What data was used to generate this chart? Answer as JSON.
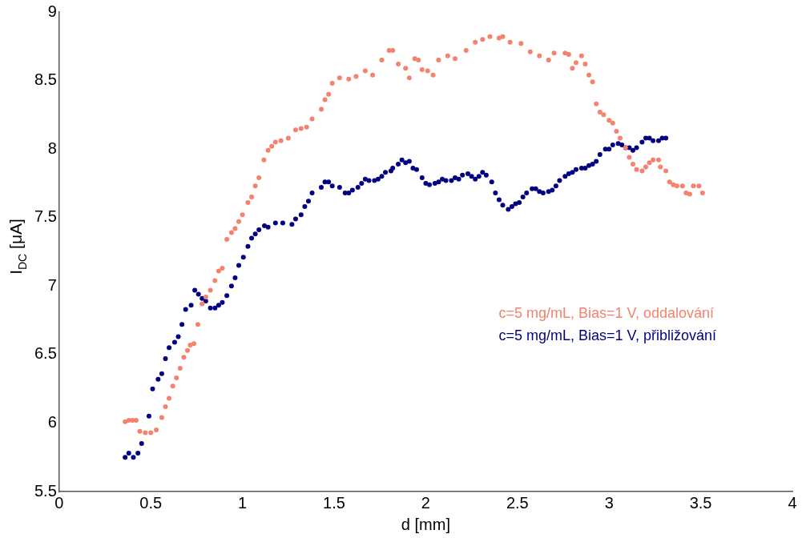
{
  "chart_data": {
    "type": "scatter",
    "xlabel": "d [mm]",
    "ylabel": "I$_{DC}$ [μA]",
    "xlim": [
      0,
      4
    ],
    "xticks": [
      0,
      0.5,
      1,
      1.5,
      2,
      2.5,
      3,
      3.5,
      4
    ],
    "ylim": [
      5.5,
      9
    ],
    "yticks": [
      5.5,
      6,
      6.5,
      7,
      7.5,
      8,
      8.5,
      9
    ],
    "grid": false,
    "legend": "right",
    "marker": "circle",
    "series": [
      {
        "name": "c=5 mg/mL, Bias=1 V, oddalování",
        "color": "#f4826e",
        "x": [
          0.36,
          0.38,
          0.4,
          0.42,
          0.44,
          0.47,
          0.5,
          0.53,
          0.56,
          0.58,
          0.6,
          0.62,
          0.64,
          0.66,
          0.68,
          0.7,
          0.715,
          0.735,
          0.757,
          0.78,
          0.8,
          0.825,
          0.85,
          0.87,
          0.89,
          0.915,
          0.94,
          0.96,
          0.98,
          1.0,
          1.03,
          1.05,
          1.07,
          1.09,
          1.117,
          1.14,
          1.16,
          1.18,
          1.21,
          1.25,
          1.29,
          1.32,
          1.35,
          1.38,
          1.43,
          1.45,
          1.47,
          1.49,
          1.53,
          1.58,
          1.62,
          1.67,
          1.71,
          1.76,
          1.8,
          1.82,
          1.85,
          1.89,
          1.91,
          1.94,
          1.96,
          1.98,
          2.01,
          2.04,
          2.07,
          2.12,
          2.16,
          2.22,
          2.27,
          2.31,
          2.35,
          2.4,
          2.42,
          2.46,
          2.52,
          2.57,
          2.62,
          2.67,
          2.7,
          2.76,
          2.78,
          2.8,
          2.82,
          2.85,
          2.87,
          2.89,
          2.91,
          2.93,
          2.95,
          2.97,
          3.0,
          3.02,
          3.04,
          3.06,
          3.09,
          3.11,
          3.13,
          3.15,
          3.18,
          3.2,
          3.22,
          3.24,
          3.27,
          3.28,
          3.31,
          3.33,
          3.35,
          3.37,
          3.4,
          3.42,
          3.44,
          3.46,
          3.49,
          3.51
        ],
        "values": [
          6.01,
          6.02,
          6.02,
          6.02,
          5.94,
          5.93,
          5.93,
          5.95,
          6.04,
          6.12,
          6.18,
          6.27,
          6.33,
          6.4,
          6.48,
          6.53,
          6.57,
          6.58,
          6.72,
          6.87,
          6.92,
          6.97,
          7.04,
          7.11,
          7.13,
          7.34,
          7.39,
          7.42,
          7.47,
          7.52,
          7.61,
          7.65,
          7.73,
          7.79,
          7.92,
          7.99,
          8.02,
          8.05,
          8.06,
          8.08,
          8.14,
          8.15,
          8.16,
          8.22,
          8.29,
          8.36,
          8.4,
          8.48,
          8.52,
          8.51,
          8.53,
          8.57,
          8.54,
          8.65,
          8.72,
          8.72,
          8.62,
          8.59,
          8.52,
          8.66,
          8.65,
          8.58,
          8.57,
          8.54,
          8.65,
          8.68,
          8.66,
          8.72,
          8.78,
          8.8,
          8.82,
          8.81,
          8.82,
          8.78,
          8.77,
          8.71,
          8.68,
          8.65,
          8.7,
          8.7,
          8.69,
          8.59,
          8.63,
          8.68,
          8.62,
          8.54,
          8.49,
          8.33,
          8.27,
          8.25,
          8.21,
          8.19,
          8.13,
          8.08,
          8.01,
          7.94,
          7.89,
          7.85,
          7.84,
          7.87,
          7.9,
          7.92,
          7.92,
          7.87,
          7.84,
          7.76,
          7.74,
          7.73,
          7.73,
          7.68,
          7.67,
          7.73,
          7.73,
          7.68
        ]
      },
      {
        "name": "c=5 mg/mL, Bias=1 V, přibližování",
        "color": "#000080",
        "x": [
          0.36,
          0.38,
          0.405,
          0.43,
          0.45,
          0.47,
          0.49,
          0.51,
          0.54,
          0.56,
          0.58,
          0.6,
          0.63,
          0.65,
          0.67,
          0.69,
          0.72,
          0.74,
          0.76,
          0.78,
          0.8,
          0.825,
          0.85,
          0.87,
          0.89,
          0.915,
          0.94,
          0.96,
          0.98,
          1.005,
          1.03,
          1.05,
          1.07,
          1.09,
          1.12,
          1.14,
          1.18,
          1.22,
          1.27,
          1.29,
          1.32,
          1.34,
          1.36,
          1.38,
          1.43,
          1.45,
          1.47,
          1.49,
          1.53,
          1.56,
          1.58,
          1.6,
          1.63,
          1.65,
          1.67,
          1.69,
          1.72,
          1.74,
          1.76,
          1.78,
          1.81,
          1.82,
          1.85,
          1.87,
          1.89,
          1.91,
          1.93,
          1.95,
          1.98,
          2.0,
          2.02,
          2.05,
          2.07,
          2.09,
          2.11,
          2.14,
          2.16,
          2.18,
          2.2,
          2.23,
          2.25,
          2.27,
          2.29,
          2.31,
          2.33,
          2.36,
          2.38,
          2.4,
          2.42,
          2.45,
          2.47,
          2.49,
          2.51,
          2.53,
          2.55,
          2.58,
          2.6,
          2.62,
          2.64,
          2.67,
          2.69,
          2.71,
          2.73,
          2.76,
          2.78,
          2.8,
          2.82,
          2.85,
          2.87,
          2.89,
          2.91,
          2.93,
          2.95,
          2.98,
          3.0,
          3.02,
          3.05,
          3.07,
          3.09,
          3.11,
          3.13,
          3.15,
          3.18,
          3.2,
          3.22,
          3.24,
          3.27,
          3.29,
          3.31
        ],
        "values": [
          5.75,
          5.78,
          5.75,
          5.78,
          5.85,
          null,
          6.05,
          6.25,
          6.32,
          6.36,
          6.47,
          6.55,
          6.59,
          6.63,
          6.72,
          6.83,
          6.86,
          6.97,
          6.94,
          6.91,
          6.89,
          6.84,
          6.84,
          6.86,
          6.88,
          6.93,
          7.0,
          7.06,
          7.15,
          7.21,
          7.29,
          7.35,
          7.38,
          7.41,
          7.44,
          7.43,
          7.46,
          7.46,
          7.45,
          7.49,
          7.52,
          7.58,
          7.62,
          7.68,
          7.72,
          7.76,
          7.76,
          7.73,
          7.72,
          7.68,
          7.68,
          7.7,
          7.72,
          7.75,
          7.78,
          7.77,
          7.77,
          7.78,
          7.8,
          7.83,
          7.84,
          7.86,
          7.89,
          7.92,
          7.9,
          7.91,
          7.86,
          7.85,
          7.79,
          7.75,
          7.74,
          7.75,
          7.76,
          7.78,
          7.77,
          7.77,
          7.79,
          7.78,
          7.81,
          7.82,
          7.8,
          7.78,
          7.8,
          7.83,
          7.81,
          7.76,
          7.68,
          7.63,
          7.59,
          7.56,
          7.58,
          7.6,
          7.61,
          7.65,
          7.68,
          7.71,
          7.71,
          7.69,
          7.68,
          7.69,
          7.7,
          7.73,
          7.77,
          7.8,
          7.82,
          7.83,
          7.85,
          7.86,
          7.86,
          7.88,
          7.89,
          7.91,
          7.96,
          8.0,
          8.0,
          8.03,
          8.04,
          8.03,
          8.01,
          8.01,
          7.99,
          8.01,
          8.05,
          8.08,
          8.08,
          8.06,
          8.06,
          8.08,
          8.08
        ]
      }
    ]
  }
}
